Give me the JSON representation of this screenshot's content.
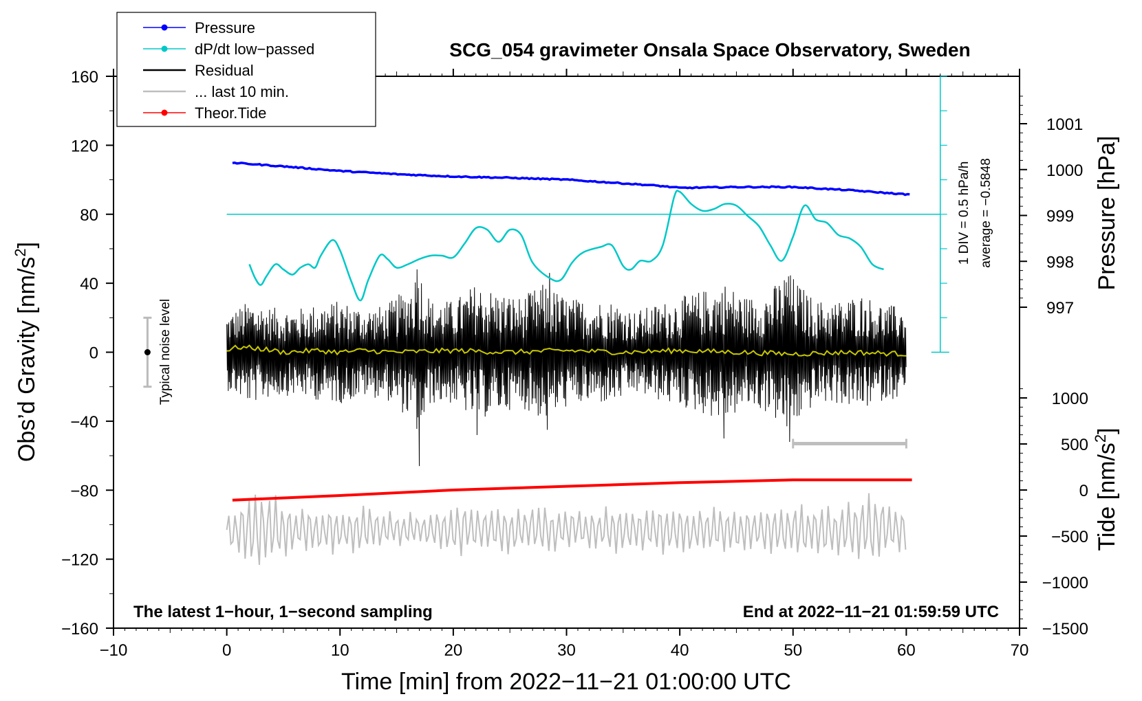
{
  "chart_data": {
    "type": "line",
    "title": "SCG_054 gravimeter Onsala Space Observatory, Sweden",
    "xlabel": "Time [min] from 2022−11−21 01:00:00 UTC",
    "ylabel_left": "Obs’d Gravity [nm/s",
    "ylabel_left_sup": "2",
    "ylabel_left_end": "]",
    "ylabel_right_pressure": "Pressure [hPa]",
    "ylabel_right_tide": "Tide [nm/s",
    "ylabel_right_tide_sup": "2",
    "ylabel_right_tide_end": "]",
    "xlim": [
      -10,
      70
    ],
    "ylim_left": [
      -160,
      160
    ],
    "x_ticks": [
      -10,
      0,
      10,
      20,
      30,
      40,
      50,
      60,
      70
    ],
    "x_tick_labels": [
      "−10",
      "0",
      "10",
      "20",
      "30",
      "40",
      "50",
      "60",
      "70"
    ],
    "y_ticks_left": [
      -160,
      -120,
      -80,
      -40,
      0,
      40,
      80,
      120,
      160
    ],
    "y_tick_labels_left": [
      "−160",
      "−120",
      "−80",
      "−40",
      "0",
      "40",
      "80",
      "120",
      "160"
    ],
    "pressure_axis": {
      "range": [
        996.4,
        1002.0
      ],
      "ticks": [
        997,
        998,
        999,
        1000,
        1001
      ],
      "tick_labels": [
        "997",
        "998",
        "999",
        "1000",
        "1001"
      ]
    },
    "tide_axis": {
      "range": [
        -1500,
        1500
      ],
      "ticks": [
        -1500,
        -1000,
        -500,
        0,
        500,
        1000
      ],
      "tick_labels": [
        "−1500",
        "−1000",
        "−500",
        "0",
        "500",
        "1000"
      ]
    },
    "legend": [
      {
        "label": "Pressure",
        "color": "#0000ff",
        "marker": true
      },
      {
        "label": "dP/dt low−passed",
        "color": "#00c8c8",
        "marker": true
      },
      {
        "label": "Residual",
        "color": "#000000",
        "marker": false
      },
      {
        "label": "... last 10 min.",
        "color": "#bebebe",
        "marker": false
      },
      {
        "label": "Theor.Tide",
        "color": "#ff0000",
        "marker": true
      }
    ],
    "legend_position": "top-left",
    "series": [
      {
        "name": "Pressure",
        "axis": "pressure",
        "color": "#0000ff",
        "points": [
          [
            0.5,
            1000.15
          ],
          [
            5,
            1000.07
          ],
          [
            10,
            999.97
          ],
          [
            15,
            999.9
          ],
          [
            20,
            999.85
          ],
          [
            25,
            999.82
          ],
          [
            30,
            999.78
          ],
          [
            35,
            999.7
          ],
          [
            38,
            999.65
          ],
          [
            40,
            999.6
          ],
          [
            45,
            999.62
          ],
          [
            50,
            999.62
          ],
          [
            55,
            999.55
          ],
          [
            60.5,
            999.45
          ]
        ]
      },
      {
        "name": "dP/dt low−passed",
        "axis": "left",
        "color": "#00c8c8",
        "points": [
          [
            2,
            51
          ],
          [
            2.5,
            43
          ],
          [
            3,
            39
          ],
          [
            3.5,
            44
          ],
          [
            4.3,
            51
          ],
          [
            5,
            48
          ],
          [
            5.8,
            45
          ],
          [
            6.5,
            49
          ],
          [
            7.2,
            51
          ],
          [
            7.8,
            49
          ],
          [
            8.3,
            56
          ],
          [
            9.3,
            65
          ],
          [
            10,
            59
          ],
          [
            11,
            41
          ],
          [
            11.8,
            30
          ],
          [
            12.5,
            42
          ],
          [
            13.5,
            56
          ],
          [
            14.2,
            54
          ],
          [
            15,
            49
          ],
          [
            16,
            51
          ],
          [
            17,
            54
          ],
          [
            18,
            56
          ],
          [
            19,
            56
          ],
          [
            20,
            55
          ],
          [
            21,
            63
          ],
          [
            22,
            72
          ],
          [
            23,
            71
          ],
          [
            24,
            64
          ],
          [
            25,
            71
          ],
          [
            26,
            68
          ],
          [
            27,
            52
          ],
          [
            28.5,
            43
          ],
          [
            29.5,
            42
          ],
          [
            30.5,
            52
          ],
          [
            31.5,
            58
          ],
          [
            33,
            61
          ],
          [
            34,
            62
          ],
          [
            35,
            50
          ],
          [
            35.7,
            48
          ],
          [
            36.5,
            53
          ],
          [
            37.5,
            53
          ],
          [
            38.5,
            62
          ],
          [
            39.5,
            90
          ],
          [
            40,
            93
          ],
          [
            41,
            86
          ],
          [
            42,
            82
          ],
          [
            43,
            83
          ],
          [
            44,
            86
          ],
          [
            45,
            85
          ],
          [
            46,
            79
          ],
          [
            47,
            73
          ],
          [
            48,
            62
          ],
          [
            49,
            53
          ],
          [
            50,
            67
          ],
          [
            51,
            85
          ],
          [
            52,
            77
          ],
          [
            53,
            75
          ],
          [
            54,
            68
          ],
          [
            55,
            66
          ],
          [
            56,
            61
          ],
          [
            57,
            51
          ],
          [
            58,
            48
          ]
        ]
      },
      {
        "name": "dP/dt reference (average)",
        "axis": "left",
        "color": "#00c8c8",
        "points": [
          [
            0,
            80
          ],
          [
            63,
            80
          ]
        ]
      },
      {
        "name": "Residual",
        "axis": "left",
        "color": "#000000",
        "envelope": [
          [
            0,
            22
          ],
          [
            2,
            30
          ],
          [
            4,
            26
          ],
          [
            6,
            25
          ],
          [
            8,
            28
          ],
          [
            10,
            30
          ],
          [
            12,
            26
          ],
          [
            14,
            27
          ],
          [
            16,
            38
          ],
          [
            17,
            50
          ],
          [
            18,
            30
          ],
          [
            20,
            30
          ],
          [
            22,
            40
          ],
          [
            24,
            35
          ],
          [
            26,
            32
          ],
          [
            28,
            40
          ],
          [
            30,
            32
          ],
          [
            32,
            30
          ],
          [
            34,
            30
          ],
          [
            36,
            24
          ],
          [
            38,
            28
          ],
          [
            40,
            32
          ],
          [
            42,
            36
          ],
          [
            44,
            40
          ],
          [
            46,
            32
          ],
          [
            48,
            36
          ],
          [
            49.5,
            48
          ],
          [
            50.5,
            40
          ],
          [
            52,
            30
          ],
          [
            54,
            30
          ],
          [
            56,
            34
          ],
          [
            58,
            28
          ],
          [
            60,
            26
          ]
        ],
        "extremes": [
          [
            16.8,
            48
          ],
          [
            17,
            -66
          ],
          [
            22.1,
            -48
          ],
          [
            28.5,
            46
          ],
          [
            28.3,
            -45
          ],
          [
            43.9,
            -50
          ],
          [
            44,
            38
          ],
          [
            49.6,
            44
          ],
          [
            49.7,
            -52
          ]
        ]
      },
      {
        "name": "Residual smoothed",
        "axis": "left",
        "color": "#c8c800",
        "points": [
          [
            0,
            1
          ],
          [
            1,
            3
          ],
          [
            3,
            2
          ],
          [
            5,
            0
          ],
          [
            8,
            1
          ],
          [
            10,
            0
          ],
          [
            12,
            1
          ],
          [
            15,
            0
          ],
          [
            20,
            1
          ],
          [
            25,
            0
          ],
          [
            30,
            1
          ],
          [
            35,
            0
          ],
          [
            40,
            1
          ],
          [
            45,
            0
          ],
          [
            50,
            -1
          ],
          [
            55,
            0
          ],
          [
            60,
            -1
          ]
        ]
      },
      {
        "name": "... last 10 min.",
        "axis": "left",
        "color": "#bebebe",
        "description": "last-10-minute residual overlay, repeated",
        "center": -103,
        "envelope": [
          [
            0,
            12
          ],
          [
            3,
            25
          ],
          [
            6,
            14
          ],
          [
            9,
            15
          ],
          [
            12,
            15
          ],
          [
            15,
            11
          ],
          [
            18,
            12
          ],
          [
            21,
            16
          ],
          [
            24,
            14
          ],
          [
            27,
            16
          ],
          [
            30,
            13
          ],
          [
            33,
            14
          ],
          [
            36,
            16
          ],
          [
            39,
            15
          ],
          [
            42,
            14
          ],
          [
            45,
            14
          ],
          [
            48,
            15
          ],
          [
            51,
            16
          ],
          [
            54,
            16
          ],
          [
            57,
            25
          ],
          [
            60,
            12
          ]
        ]
      },
      {
        "name": "Theor.Tide",
        "axis": "tide",
        "color": "#ff0000",
        "points": [
          [
            0.5,
            -110
          ],
          [
            10,
            -60
          ],
          [
            20,
            0
          ],
          [
            30,
            40
          ],
          [
            40,
            80
          ],
          [
            50,
            110
          ],
          [
            60.5,
            110
          ]
        ]
      }
    ],
    "annotations": {
      "bottom_left": "The latest 1−hour, 1−second sampling",
      "bottom_right": "End at 2022−11−21 01:59:59 UTC",
      "noise_label": "Typical noise level",
      "noise_bar": {
        "x": -7,
        "center": 0,
        "half_range": 20
      },
      "ten_min_bar": {
        "x_start": 50,
        "x_end": 60,
        "y": -53
      },
      "div_label": "1 DIV = 0.5 hPa/h",
      "average_label": "average = −0.5848",
      "dpdt_scale": {
        "x": 63,
        "y_bottom": 0,
        "y_top": 160
      }
    },
    "grid": false
  }
}
